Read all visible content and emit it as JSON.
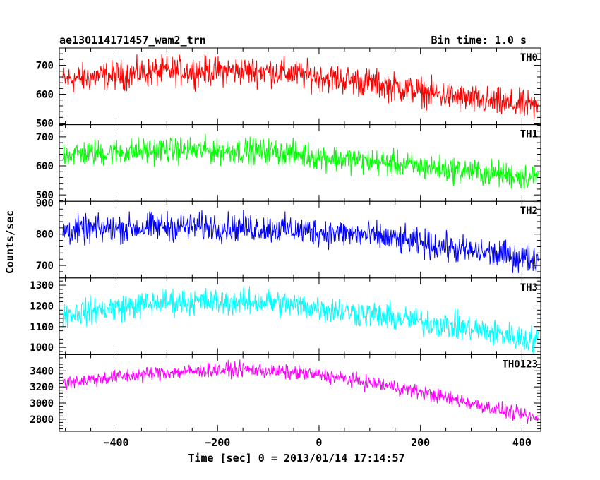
{
  "header": {
    "title": "ae130114171457_wam2_trn",
    "bin_time": "Bin time: 1.0 s"
  },
  "chart_data": {
    "type": "line",
    "xlabel": "Time [sec] 0 = 2013/01/14 17:14:57",
    "ylabel": "Counts/sec",
    "xlim": [
      -512,
      437
    ],
    "x_range_data": [
      -505,
      432
    ],
    "x_ticks": [
      -400,
      -200,
      0,
      200,
      400
    ],
    "x_tick_labels": [
      "−400",
      "−200",
      "0",
      "200",
      "400"
    ],
    "panels": [
      {
        "label": "TH0",
        "color": "#ff0000",
        "ylim": [
          495,
          760
        ],
        "y_ticks": [
          500,
          600,
          700
        ],
        "y_tick_labels": [
          "500",
          "600",
          "700"
        ],
        "trend": {
          "x": [
            -505,
            -300,
            -100,
            100,
            300,
            432
          ],
          "y": [
            650,
            680,
            680,
            640,
            580,
            555
          ]
        },
        "noise_amplitude": 50
      },
      {
        "label": "TH1",
        "color": "#00ff00",
        "ylim": [
          478,
          742
        ],
        "y_ticks": [
          500,
          600,
          700
        ],
        "y_tick_labels": [
          "500",
          "600",
          "700"
        ],
        "trend": {
          "x": [
            -505,
            -300,
            -100,
            100,
            300,
            432
          ],
          "y": [
            640,
            655,
            650,
            615,
            580,
            560
          ]
        },
        "noise_amplitude": 45
      },
      {
        "label": "TH2",
        "color": "#0000ff",
        "ylim": [
          660,
          905
        ],
        "y_ticks": [
          700,
          800,
          900
        ],
        "y_tick_labels": [
          "700",
          "800",
          "900"
        ],
        "trend": {
          "x": [
            -505,
            -300,
            -100,
            100,
            300,
            432
          ],
          "y": [
            810,
            825,
            820,
            795,
            745,
            720
          ]
        },
        "noise_amplitude": 45
      },
      {
        "label": "TH3",
        "color": "#00ffff",
        "ylim": [
          965,
          1335
        ],
        "y_ticks": [
          1000,
          1100,
          1200,
          1300
        ],
        "y_tick_labels": [
          "1000",
          "1100",
          "1200",
          "1300"
        ],
        "trend": {
          "x": [
            -505,
            -300,
            -100,
            100,
            300,
            432
          ],
          "y": [
            1160,
            1220,
            1220,
            1160,
            1090,
            1030
          ]
        },
        "noise_amplitude": 65
      },
      {
        "label": "TH0123",
        "color": "#ff00ff",
        "ylim": [
          2650,
          3600
        ],
        "y_ticks": [
          2800,
          3000,
          3200,
          3400
        ],
        "y_tick_labels": [
          "2800",
          "3000",
          "3200",
          "3400"
        ],
        "trend": {
          "x": [
            -505,
            -300,
            -150,
            0,
            150,
            300,
            432
          ],
          "y": [
            3260,
            3380,
            3420,
            3350,
            3200,
            3000,
            2800
          ]
        },
        "noise_amplitude": 90
      }
    ]
  }
}
